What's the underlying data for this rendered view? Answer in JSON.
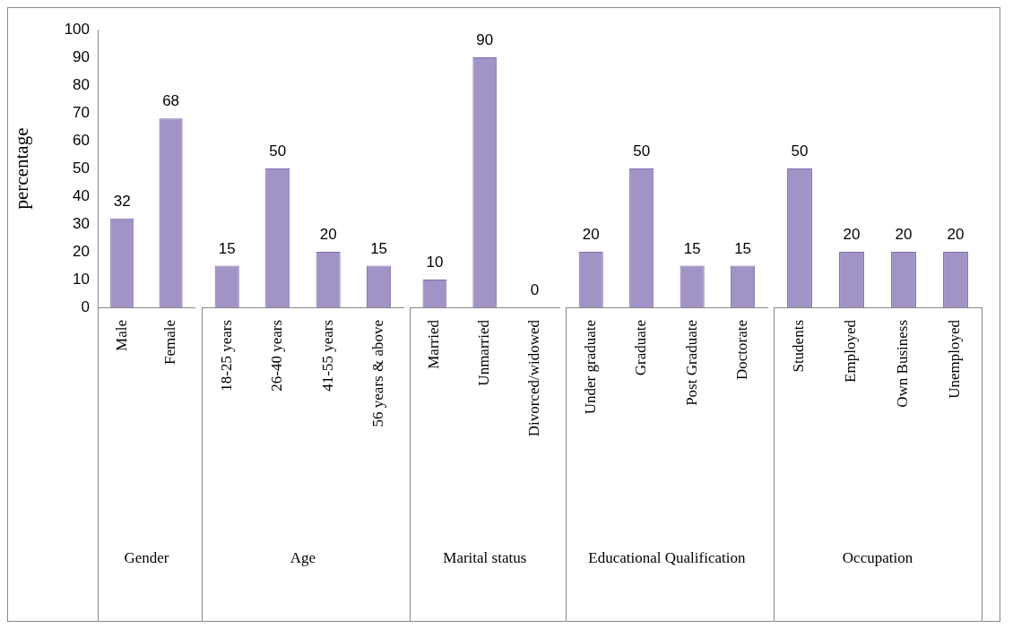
{
  "chart_data": [
    {
      "type": "bar",
      "ylabel": "percentage",
      "xlabel": "Gender",
      "categories": [
        "Male",
        "Female"
      ],
      "values": [
        32,
        68
      ],
      "color": "#a293c6",
      "ylim": [
        0,
        100
      ],
      "yticks": [
        0,
        10,
        20,
        30,
        40,
        50,
        60,
        70,
        80,
        90,
        100
      ],
      "grid": false,
      "data_labels": true
    },
    {
      "type": "bar",
      "xlabel": "Age",
      "categories": [
        "18-25 years",
        "26-40 years",
        "41-55 years",
        "56 years & above"
      ],
      "values": [
        15,
        50,
        20,
        15
      ],
      "color": "#a293c6",
      "ylim": [
        0,
        100
      ],
      "grid": false,
      "data_labels": true,
      "tick_labels": "x"
    },
    {
      "type": "bar",
      "xlabel": "Marital status",
      "categories": [
        "Married",
        "Unmarried",
        "Divorced/widowed"
      ],
      "values": [
        10,
        90,
        0
      ],
      "color": "#a293c6",
      "ylim": [
        0,
        100
      ],
      "grid": false,
      "data_labels": true,
      "tick_labels": "x"
    },
    {
      "type": "bar",
      "xlabel": "Educational Qualification",
      "categories": [
        "Under graduate",
        "Graduate",
        "Post Graduate",
        "Doctorate"
      ],
      "values": [
        20,
        50,
        15,
        15
      ],
      "color": "#a293c6",
      "ylim": [
        0,
        100
      ],
      "grid": false,
      "data_labels": true,
      "tick_labels": "x"
    },
    {
      "type": "bar",
      "xlabel": "Occupation",
      "categories": [
        "Students",
        "Employed",
        "Own Business",
        "Unemployed"
      ],
      "values": [
        50,
        20,
        20,
        20
      ],
      "color": "#a293c6",
      "ylim": [
        0,
        100
      ],
      "grid": false,
      "data_labels": true,
      "tick_labels": "x"
    }
  ]
}
